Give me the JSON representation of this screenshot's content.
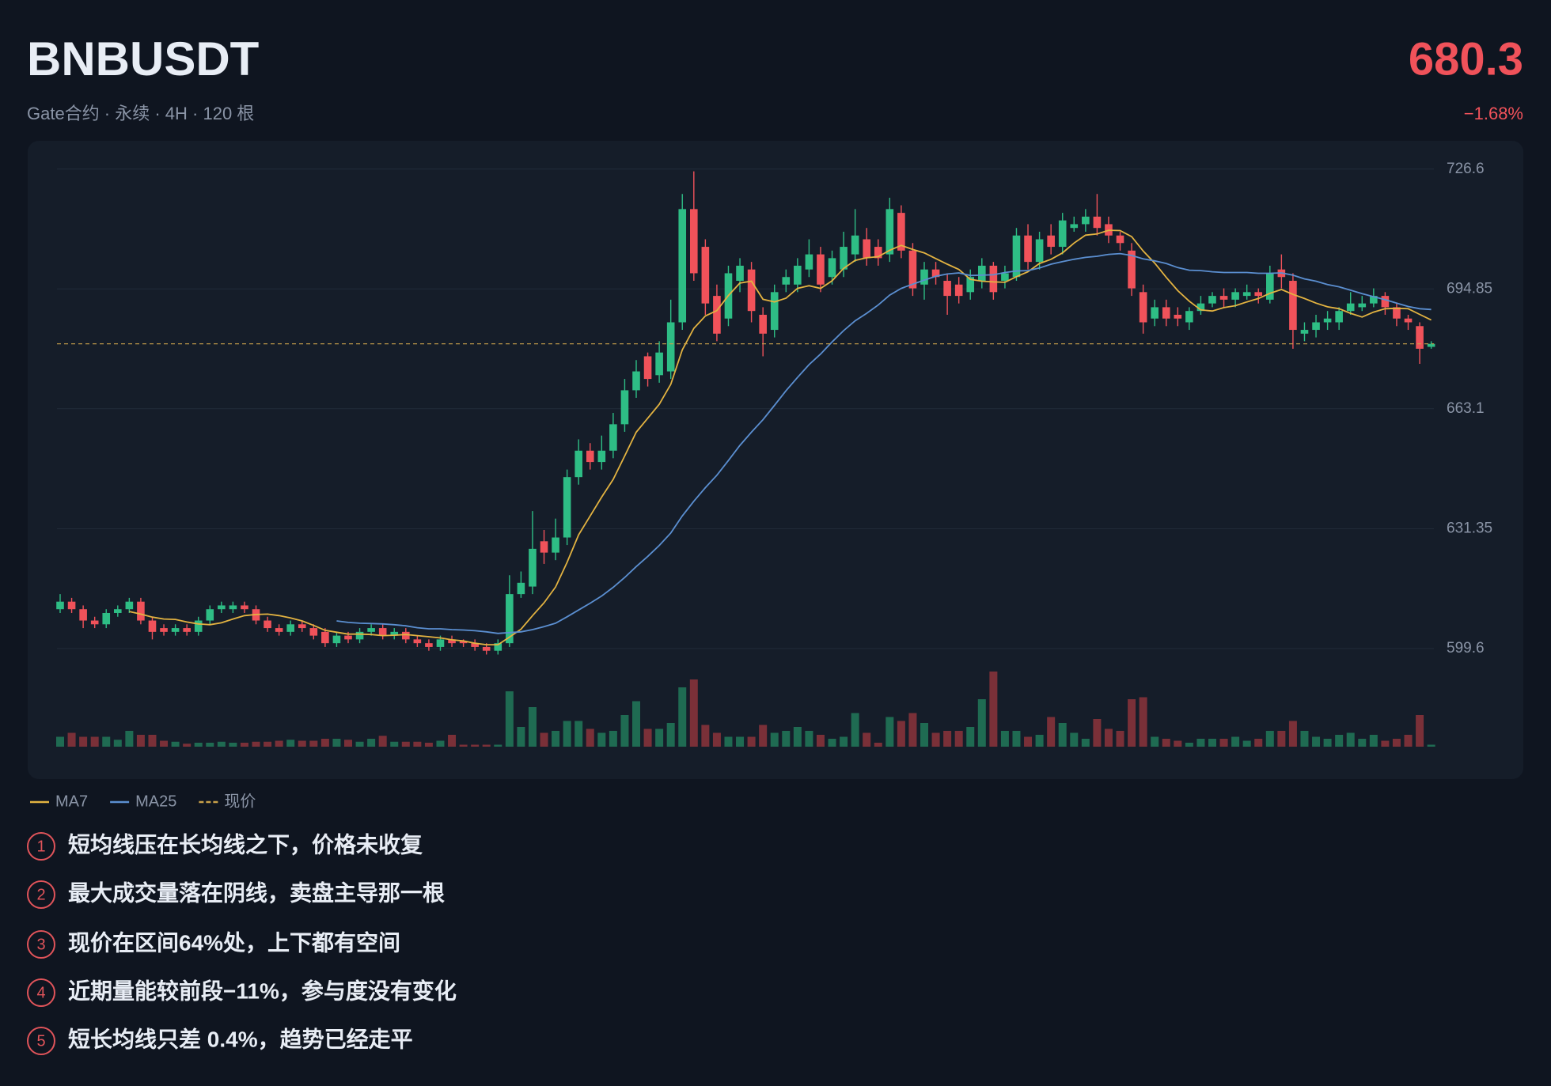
{
  "header": {
    "symbol": "BNBUSDT",
    "subtitle": "Gate合约 · 永续 · 4H · 120 根",
    "change": "−1.68%"
  },
  "chart_data": {
    "type": "candlestick",
    "open": [
      610,
      612,
      610,
      607,
      606,
      609,
      610,
      612,
      607,
      605,
      604,
      605,
      604,
      607,
      610,
      610,
      611,
      610,
      607,
      605,
      604,
      606,
      605,
      604,
      601,
      603,
      602,
      604,
      605,
      603,
      604,
      602,
      601,
      600,
      602,
      601.5,
      601,
      600,
      599,
      601,
      614,
      616,
      628,
      625,
      629,
      645,
      652,
      649,
      652,
      659,
      668,
      677,
      672,
      673,
      686,
      716,
      706,
      693,
      687,
      697,
      700,
      688,
      684,
      696,
      696,
      700,
      704,
      698,
      700,
      704,
      708,
      706,
      704,
      715,
      705,
      696,
      700,
      697,
      696,
      694,
      697,
      701,
      697,
      698,
      709,
      702,
      709,
      706,
      711,
      712,
      714,
      712,
      709,
      705,
      694,
      687,
      690,
      688,
      686,
      689,
      691,
      693,
      692,
      693,
      694,
      692,
      700,
      697,
      683,
      684,
      686,
      686,
      689,
      690,
      691,
      693,
      690,
      687,
      685,
      679.5
    ],
    "high": [
      614,
      613,
      611,
      608,
      610,
      611,
      613,
      613,
      608,
      606,
      606,
      606,
      608,
      611,
      612,
      612,
      612,
      611,
      608,
      606,
      607,
      607,
      606,
      605,
      604,
      604,
      605,
      606,
      606,
      605,
      605,
      603,
      602,
      603,
      603,
      602,
      602,
      601,
      602,
      619,
      620,
      636,
      631,
      634,
      647,
      655,
      654,
      656,
      662,
      671,
      676,
      678,
      681,
      692,
      720,
      726,
      708,
      696,
      701,
      703,
      702,
      690,
      696,
      700,
      703,
      708,
      706,
      705,
      710,
      716,
      711,
      708,
      719,
      717,
      707,
      702,
      702,
      699,
      698,
      700,
      703,
      702,
      701,
      711,
      712,
      710,
      712,
      715,
      714,
      716,
      720,
      714,
      710,
      707,
      696,
      692,
      692,
      690,
      690,
      693,
      694,
      695,
      695,
      696,
      695,
      701,
      704,
      699,
      686,
      688,
      689,
      690,
      694,
      693,
      695,
      694,
      691,
      688,
      686,
      681
    ],
    "low": [
      609,
      609,
      605,
      605,
      605,
      608,
      609,
      606,
      602,
      603,
      603,
      603,
      603,
      606,
      609,
      609,
      609,
      606,
      604,
      603,
      603,
      604,
      602,
      600,
      600,
      601,
      601,
      603,
      602,
      602,
      601,
      600,
      599,
      599,
      600,
      600,
      599,
      598,
      598,
      600,
      613,
      614,
      622,
      623,
      627,
      643,
      647,
      647,
      650,
      657,
      666,
      669,
      670,
      671,
      684,
      697,
      688,
      681,
      685,
      694,
      686,
      677,
      682,
      694,
      694,
      698,
      694,
      696,
      698,
      702,
      701,
      701,
      702,
      703,
      693,
      692,
      696,
      688,
      691,
      692,
      695,
      692,
      695,
      697,
      700,
      700,
      704,
      704,
      710,
      710,
      709,
      707,
      705,
      693,
      683,
      685,
      685,
      685,
      684,
      688,
      690,
      690,
      690,
      692,
      691,
      691,
      695,
      679,
      681,
      682,
      684,
      684,
      688,
      689,
      690,
      688,
      685,
      684,
      675,
      679
    ],
    "close": [
      612,
      610,
      607,
      606,
      609,
      610,
      612,
      607,
      604,
      604,
      605,
      604,
      607,
      610,
      611,
      611,
      610,
      607,
      605,
      604,
      606,
      605,
      603,
      601,
      603,
      602,
      604,
      605,
      603,
      604,
      602,
      601,
      600,
      602,
      601,
      601,
      600,
      599,
      601,
      614,
      617,
      626,
      625,
      629,
      645,
      652,
      649,
      652,
      659,
      668,
      673,
      671,
      678,
      686,
      716,
      699,
      691,
      683,
      699,
      701,
      689,
      683,
      694,
      698,
      701,
      704,
      696,
      703,
      706,
      709,
      703,
      703,
      716,
      705,
      695,
      700,
      698,
      693,
      693,
      698,
      701,
      694,
      699,
      709,
      702,
      708,
      706,
      713,
      712,
      714,
      711,
      709,
      707,
      695,
      686,
      690,
      687,
      687,
      689,
      691,
      693,
      692,
      694,
      694,
      693,
      699,
      698,
      684,
      684,
      686,
      687,
      689,
      691,
      691,
      693,
      690,
      687,
      686,
      679,
      680.3
    ],
    "volume": [
      10,
      14,
      10,
      10,
      10,
      7,
      16,
      12,
      12,
      6,
      5,
      3,
      4,
      4,
      5,
      4,
      4,
      5,
      5,
      6,
      7,
      6,
      6,
      8,
      8,
      7,
      5,
      8,
      11,
      5,
      5,
      5,
      4,
      6,
      12,
      2,
      2,
      2,
      2,
      56,
      20,
      40,
      14,
      16,
      26,
      26,
      18,
      14,
      16,
      32,
      46,
      18,
      18,
      24,
      60,
      68,
      22,
      14,
      10,
      10,
      10,
      22,
      14,
      16,
      20,
      16,
      12,
      8,
      10,
      34,
      14,
      4,
      30,
      26,
      34,
      24,
      14,
      16,
      16,
      20,
      48,
      76,
      16,
      16,
      10,
      12,
      30,
      24,
      14,
      8,
      28,
      18,
      16,
      48,
      50,
      10,
      8,
      6,
      4,
      8,
      8,
      8,
      10,
      6,
      8,
      16,
      16,
      26,
      16,
      10,
      8,
      12,
      14,
      8,
      12,
      6,
      8,
      12,
      32,
      2
    ],
    "series": [
      {
        "name": "MA7",
        "color": "#e3b341",
        "values": [
          null,
          null,
          null,
          null,
          null,
          null,
          609.4,
          608.7,
          607.9,
          607.4,
          607.3,
          606.6,
          606.1,
          605.9,
          606.4,
          607.4,
          608.3,
          608.6,
          608.7,
          608.3,
          607.7,
          606.9,
          605.7,
          604.4,
          603.9,
          603.4,
          603.4,
          603.3,
          603.0,
          603.1,
          603.3,
          603.0,
          602.7,
          602.4,
          601.9,
          601.6,
          601.0,
          600.6,
          600.6,
          602.6,
          604.7,
          608.3,
          611.7,
          615.9,
          622.4,
          629.7,
          634.7,
          639.7,
          644.4,
          650.6,
          656.9,
          660.6,
          664.3,
          669.6,
          678.7,
          684.4,
          687.7,
          689.1,
          693.1,
          696.4,
          696.9,
          692.1,
          691.4,
          692.4,
          695.0,
          695.7,
          695.0,
          697.0,
          700.3,
          702.4,
          703.1,
          703.4,
          705.1,
          706.4,
          705.3,
          704.4,
          702.9,
          701.4,
          700.0,
          697.4,
          696.9,
          696.7,
          696.6,
          698.1,
          699.4,
          701.6,
          702.7,
          704.4,
          707.0,
          709.1,
          709.4,
          710.4,
          710.3,
          708.7,
          704.9,
          701.7,
          697.9,
          694.4,
          691.6,
          689.3,
          689.0,
          689.9,
          690.4,
          691.4,
          692.3,
          693.7,
          694.7,
          693.4,
          692.3,
          691.1,
          690.1,
          689.6,
          688.4,
          687.4,
          688.7,
          689.6,
          689.7,
          689.6,
          688.1,
          686.6
        ]
      },
      {
        "name": "MA25",
        "color": "#5b8fd1",
        "values": [
          null,
          null,
          null,
          null,
          null,
          null,
          null,
          null,
          null,
          null,
          null,
          null,
          null,
          null,
          null,
          null,
          null,
          null,
          null,
          null,
          null,
          null,
          null,
          null,
          606.9,
          606.5,
          606.3,
          606.2,
          606.1,
          605.9,
          605.6,
          605.1,
          604.8,
          604.8,
          604.6,
          604.5,
          604.3,
          604.0,
          603.6,
          603.8,
          604.0,
          604.6,
          605.4,
          606.3,
          608.0,
          609.8,
          611.6,
          613.5,
          615.8,
          618.4,
          621.3,
          624.0,
          626.9,
          630.2,
          634.7,
          638.6,
          642.2,
          645.5,
          649.4,
          653.4,
          656.9,
          660.2,
          664.0,
          667.9,
          671.4,
          674.8,
          677.6,
          680.8,
          683.8,
          686.4,
          688.4,
          690.6,
          693.2,
          695.0,
          696.1,
          697.2,
          698.2,
          698.8,
          699.1,
          698.4,
          698.5,
          698.6,
          699.2,
          699.6,
          699.7,
          700.4,
          701.4,
          702.1,
          702.7,
          703.2,
          703.5,
          704.0,
          704.2,
          703.7,
          702.8,
          702.3,
          701.6,
          700.5,
          699.8,
          699.7,
          699.4,
          699.2,
          699.2,
          699.2,
          699.0,
          699.0,
          699.1,
          698.5,
          697.5,
          696.9,
          696.0,
          695.4,
          694.5,
          693.6,
          692.8,
          692.0,
          691.1,
          690.2,
          689.6,
          689.4
        ]
      }
    ],
    "current_price": 680.3,
    "current_price_label": "现价",
    "current_price_color": "#c9a14a",
    "up_color": "#2ebd85",
    "down_color": "#f0525a",
    "ylim": [
      595.9,
      732.1
    ],
    "yticks": [
      599.6,
      631.35,
      663.1,
      694.85,
      726.6
    ],
    "vlim": [
      0,
      100
    ],
    "grid": true
  },
  "notes": [
    {
      "n": 1,
      "text": "短均线压在长均线之下，价格未收复"
    },
    {
      "n": 2,
      "text": "最大成交量落在阴线，卖盘主导那一根"
    },
    {
      "n": 3,
      "text": "现价在区间64%处，上下都有空间"
    },
    {
      "n": 4,
      "text": "近期量能较前段−11%，参与度没有变化"
    },
    {
      "n": 5,
      "text": "短长均线只差 0.4%，趋势已经走平"
    }
  ]
}
